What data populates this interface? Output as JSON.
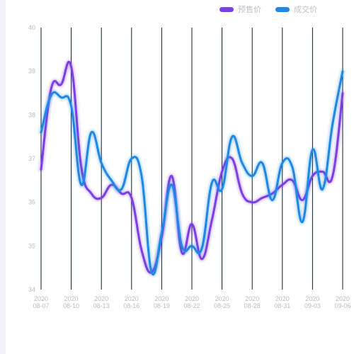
{
  "chart_data": {
    "type": "line",
    "title": "",
    "xlabel": "",
    "ylabel": "",
    "ylim": [
      34,
      40
    ],
    "yticks": [
      34,
      35,
      36,
      37,
      38,
      39,
      40
    ],
    "grid": "vertical",
    "legend_position": "top-right",
    "x_tick_labels": [
      {
        "year": "2020",
        "date": "08-07"
      },
      {
        "year": "2020",
        "date": "08-10"
      },
      {
        "year": "2020",
        "date": "08-13"
      },
      {
        "year": "2020",
        "date": "08-16"
      },
      {
        "year": "2020",
        "date": "08-19"
      },
      {
        "year": "2020",
        "date": "08-22"
      },
      {
        "year": "2020",
        "date": "08-25"
      },
      {
        "year": "2020",
        "date": "08-28"
      },
      {
        "year": "2020",
        "date": "08-31"
      },
      {
        "year": "2020",
        "date": "09-03"
      },
      {
        "year": "2020",
        "date": "09-06"
      }
    ],
    "x": [
      "2020-08-07",
      "2020-08-08",
      "2020-08-09",
      "2020-08-10",
      "2020-08-11",
      "2020-08-12",
      "2020-08-13",
      "2020-08-14",
      "2020-08-15",
      "2020-08-16",
      "2020-08-17",
      "2020-08-18",
      "2020-08-19",
      "2020-08-20",
      "2020-08-21",
      "2020-08-22",
      "2020-08-23",
      "2020-08-24",
      "2020-08-25",
      "2020-08-26",
      "2020-08-27",
      "2020-08-28",
      "2020-08-29",
      "2020-08-30",
      "2020-08-31",
      "2020-09-01",
      "2020-09-02",
      "2020-09-03",
      "2020-09-04",
      "2020-09-05",
      "2020-09-06"
    ],
    "series": [
      {
        "name": "预售价",
        "color": "#7b3fe4",
        "values": [
          36.75,
          38.6,
          38.7,
          39.1,
          36.8,
          36.2,
          36.1,
          36.4,
          36.2,
          36.1,
          34.9,
          34.4,
          35.2,
          36.6,
          34.85,
          35.5,
          34.7,
          35.6,
          36.7,
          37.0,
          36.2,
          36.0,
          36.1,
          36.2,
          36.4,
          36.5,
          36.05,
          36.6,
          36.7,
          36.6,
          38.5
        ]
      },
      {
        "name": "成交价",
        "color": "#1e88e5",
        "values": [
          37.6,
          38.45,
          38.4,
          38.2,
          36.4,
          37.6,
          36.9,
          36.5,
          36.3,
          37.0,
          36.6,
          34.4,
          35.3,
          36.4,
          35.0,
          35.0,
          34.95,
          36.45,
          36.3,
          37.5,
          36.9,
          36.6,
          36.9,
          36.05,
          36.9,
          36.8,
          35.55,
          37.2,
          36.3,
          37.8,
          39.0
        ]
      }
    ]
  }
}
